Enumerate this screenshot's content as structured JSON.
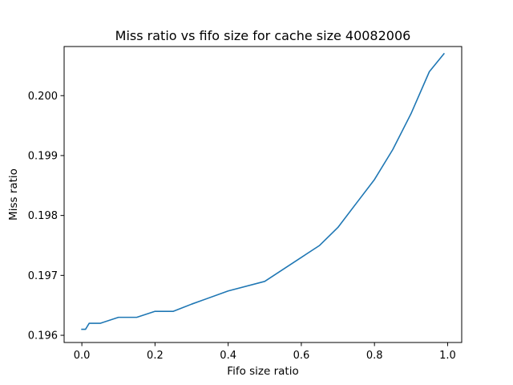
{
  "chart_data": {
    "type": "line",
    "title": "Miss ratio vs fifo size for cache size 40082006",
    "xlabel": "Fifo size ratio",
    "ylabel": "Miss ratio",
    "xlim": [
      -0.0485,
      1.0385
    ],
    "ylim": [
      0.19588,
      0.20082
    ],
    "xticks": [
      0.0,
      0.2,
      0.4,
      0.6,
      0.8,
      1.0
    ],
    "xtick_labels": [
      "0.0",
      "0.2",
      "0.4",
      "0.6",
      "0.8",
      "1.0"
    ],
    "yticks": [
      0.196,
      0.197,
      0.198,
      0.199,
      0.2
    ],
    "ytick_labels": [
      "0.196",
      "0.197",
      "0.198",
      "0.199",
      "0.200"
    ],
    "grid": false,
    "series": [
      {
        "color": "#1f77b4",
        "x": [
          0.0,
          0.01,
          0.02,
          0.03,
          0.05,
          0.1,
          0.15,
          0.2,
          0.25,
          0.3,
          0.4,
          0.5,
          0.6,
          0.65,
          0.7,
          0.75,
          0.8,
          0.85,
          0.9,
          0.95,
          0.99
        ],
        "y": [
          0.1961,
          0.1961,
          0.1962,
          0.1962,
          0.1962,
          0.1963,
          0.1963,
          0.1964,
          0.1964,
          0.19652,
          0.19674,
          0.1969,
          0.1973,
          0.1975,
          0.1978,
          0.1982,
          0.1986,
          0.1991,
          0.1997,
          0.2004,
          0.2007
        ]
      }
    ]
  }
}
